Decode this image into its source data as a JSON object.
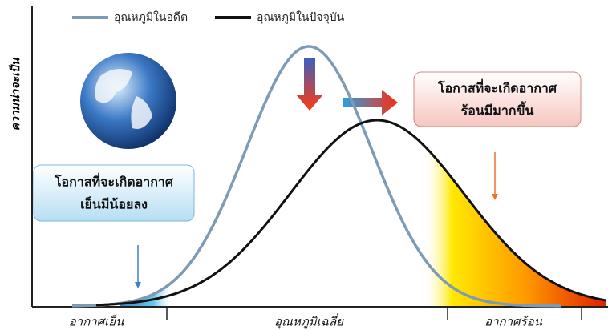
{
  "legend": {
    "past": "อุณหภูมิในอดีต",
    "present": "อุณหภูมิในปัจจุบัน"
  },
  "y_axis_label": "ความน่าจะเป็น",
  "x_labels": {
    "cold": "อากาศเย็น",
    "average": "อุณหภูมิเฉลี่ย",
    "hot": "อากาศร้อน"
  },
  "callouts": {
    "hot": [
      "โอกาสที่จะเกิดอากาศ",
      "ร้อนมีมากขึ้น"
    ],
    "cold": [
      "โอกาสที่จะเกิดอากาศ",
      "เย็นมีน้อยลง"
    ]
  }
}
